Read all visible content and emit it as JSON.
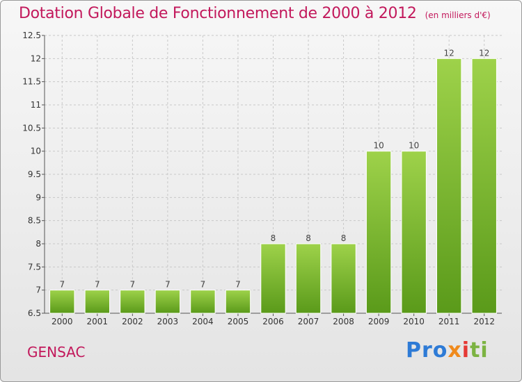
{
  "chart_data": {
    "type": "bar",
    "title": "Dotation Globale de Fonctionnement de 2000 à 2012",
    "subtitle": "(en milliers d'€)",
    "categories": [
      "2000",
      "2001",
      "2002",
      "2003",
      "2004",
      "2005",
      "2006",
      "2007",
      "2008",
      "2009",
      "2010",
      "2011",
      "2012"
    ],
    "values": [
      7,
      7,
      7,
      7,
      7,
      7,
      8,
      8,
      8,
      10,
      10,
      12,
      12
    ],
    "data_labels": [
      "7",
      "7",
      "7",
      "7",
      "7",
      "7",
      "8",
      "8",
      "8",
      "10",
      "10",
      "12",
      "12"
    ],
    "ylim": [
      6.5,
      12.5
    ],
    "yticks": [
      6.5,
      7,
      7.5,
      8,
      8.5,
      9,
      9.5,
      10,
      10.5,
      11,
      11.5,
      12,
      12.5
    ],
    "ytick_labels": [
      "6.5",
      "7",
      "7.5",
      "8",
      "8.5",
      "9",
      "9.5",
      "10",
      "10.5",
      "11",
      "11.5",
      "12",
      "12.5"
    ],
    "xlabel": "",
    "ylabel": "",
    "grid": true,
    "bar_color": "#7cc034"
  },
  "footer": {
    "city": "GENSAC",
    "logo": {
      "p1": "Pro",
      "p2": "x",
      "p3": "i",
      "p4": "ti"
    }
  }
}
